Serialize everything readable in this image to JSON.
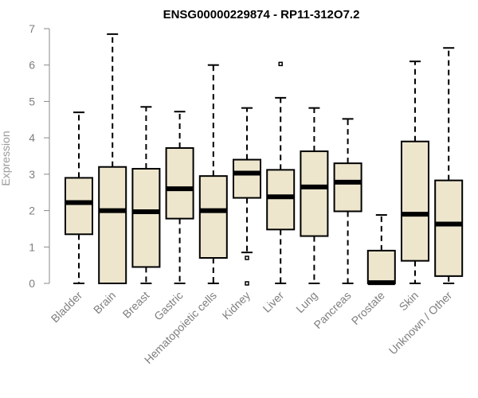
{
  "chart_data": {
    "type": "boxplot",
    "title": "ENSG00000229874 - RP11-312O7.2",
    "xlabel": "",
    "ylabel": "Expression",
    "ylim": [
      0,
      7
    ],
    "yticks": [
      "0",
      "1",
      "2",
      "3",
      "4",
      "5",
      "6",
      "7"
    ],
    "colors": {
      "box_fill": "#ede6cd",
      "stroke": "#000000",
      "axis": "#8a8a8a",
      "label": "#7f7f7f"
    },
    "categories": [
      "Bladder",
      "Brain",
      "Breast",
      "Gastric",
      "Hematopoietic cells",
      "Kidney",
      "Liver",
      "Lung",
      "Pancreas",
      "Prostate",
      "Skin",
      "Unknown / Other"
    ],
    "boxes": [
      {
        "name": "Bladder",
        "whisker_low": 0,
        "q1": 1.35,
        "median": 2.22,
        "q3": 2.9,
        "whisker_high": 4.7,
        "outliers": []
      },
      {
        "name": "Brain",
        "whisker_low": 0,
        "q1": 0.0,
        "median": 2.0,
        "q3": 3.2,
        "whisker_high": 6.85,
        "outliers": []
      },
      {
        "name": "Breast",
        "whisker_low": 0,
        "q1": 0.45,
        "median": 1.97,
        "q3": 3.15,
        "whisker_high": 4.85,
        "outliers": []
      },
      {
        "name": "Gastric",
        "whisker_low": 0,
        "q1": 1.78,
        "median": 2.6,
        "q3": 3.72,
        "whisker_high": 4.72,
        "outliers": []
      },
      {
        "name": "Hematopoietic cells",
        "whisker_low": 0,
        "q1": 0.7,
        "median": 2.0,
        "q3": 2.95,
        "whisker_high": 6.0,
        "outliers": []
      },
      {
        "name": "Kidney",
        "whisker_low": 0.85,
        "q1": 2.35,
        "median": 3.03,
        "q3": 3.4,
        "whisker_high": 4.82,
        "outliers": [
          0.7,
          0.0
        ]
      },
      {
        "name": "Liver",
        "whisker_low": 0,
        "q1": 1.48,
        "median": 2.38,
        "q3": 3.12,
        "whisker_high": 5.1,
        "outliers": [
          6.03
        ]
      },
      {
        "name": "Lung",
        "whisker_low": 0,
        "q1": 1.3,
        "median": 2.65,
        "q3": 3.63,
        "whisker_high": 4.82,
        "outliers": []
      },
      {
        "name": "Pancreas",
        "whisker_low": 0,
        "q1": 1.98,
        "median": 2.78,
        "q3": 3.3,
        "whisker_high": 4.52,
        "outliers": []
      },
      {
        "name": "Prostate",
        "whisker_low": 0,
        "q1": 0.0,
        "median": 0.02,
        "q3": 0.9,
        "whisker_high": 1.88,
        "outliers": []
      },
      {
        "name": "Skin",
        "whisker_low": 0,
        "q1": 0.62,
        "median": 1.9,
        "q3": 3.9,
        "whisker_high": 6.1,
        "outliers": []
      },
      {
        "name": "Unknown / Other",
        "whisker_low": 0,
        "q1": 0.2,
        "median": 1.63,
        "q3": 2.83,
        "whisker_high": 6.47,
        "outliers": []
      }
    ]
  }
}
